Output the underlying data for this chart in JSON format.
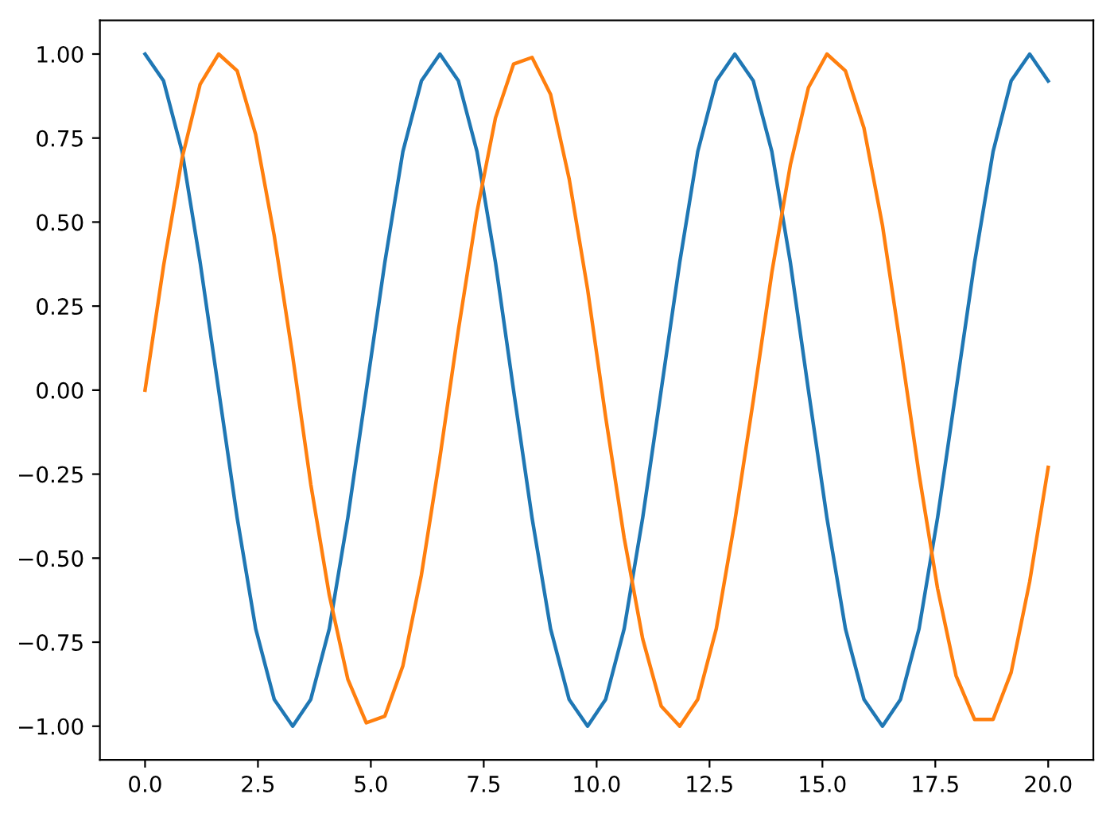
{
  "chart_data": {
    "type": "line",
    "x": [
      0,
      0.41,
      0.82,
      1.22,
      1.63,
      2.04,
      2.45,
      2.86,
      3.27,
      3.67,
      4.08,
      4.49,
      4.9,
      5.31,
      5.71,
      6.12,
      6.53,
      6.94,
      7.35,
      7.76,
      8.16,
      8.57,
      8.98,
      9.39,
      9.8,
      10.2,
      10.61,
      11.02,
      11.43,
      11.84,
      12.24,
      12.65,
      13.06,
      13.47,
      13.88,
      14.29,
      14.69,
      15.1,
      15.51,
      15.92,
      16.33,
      16.73,
      17.14,
      17.55,
      17.96,
      18.37,
      18.78,
      19.18,
      19.59,
      20
    ],
    "series": [
      {
        "color": "#1f77b4",
        "values": [
          1,
          0.92,
          0.71,
          0.38,
          0,
          -0.38,
          -0.71,
          -0.92,
          -1,
          -0.92,
          -0.71,
          -0.38,
          0,
          0.38,
          0.71,
          0.92,
          1,
          0.92,
          0.71,
          0.38,
          0,
          -0.38,
          -0.71,
          -0.92,
          -1,
          -0.92,
          -0.71,
          -0.38,
          0,
          0.38,
          0.71,
          0.92,
          1,
          0.92,
          0.71,
          0.38,
          0,
          -0.38,
          -0.71,
          -0.92,
          -1,
          -0.92,
          -0.71,
          -0.38,
          0,
          0.38,
          0.71,
          0.92,
          1,
          0.92
        ]
      },
      {
        "color": "#ff7f0e",
        "values": [
          0,
          0.37,
          0.69,
          0.91,
          1,
          0.95,
          0.76,
          0.46,
          0.1,
          -0.28,
          -0.61,
          -0.86,
          -0.99,
          -0.97,
          -0.82,
          -0.55,
          -0.2,
          0.18,
          0.53,
          0.81,
          0.97,
          0.99,
          0.88,
          0.63,
          0.3,
          -0.08,
          -0.44,
          -0.74,
          -0.94,
          -1,
          -0.92,
          -0.71,
          -0.39,
          -0.03,
          0.35,
          0.67,
          0.9,
          1,
          0.95,
          0.78,
          0.49,
          0.13,
          -0.25,
          -0.59,
          -0.85,
          -0.98,
          -0.98,
          -0.84,
          -0.57,
          -0.23
        ]
      }
    ],
    "xlim": [
      -1,
      21
    ],
    "ylim": [
      -1.1,
      1.1
    ],
    "xticks": [
      {
        "value": 0,
        "label": "0.0"
      },
      {
        "value": 2.5,
        "label": "2.5"
      },
      {
        "value": 5,
        "label": "5.0"
      },
      {
        "value": 7.5,
        "label": "7.5"
      },
      {
        "value": 10,
        "label": "10.0"
      },
      {
        "value": 12.5,
        "label": "12.5"
      },
      {
        "value": 15,
        "label": "15.0"
      },
      {
        "value": 17.5,
        "label": "17.5"
      },
      {
        "value": 20,
        "label": "20.0"
      }
    ],
    "yticks": [
      {
        "value": -1,
        "label": "−1.00"
      },
      {
        "value": -0.75,
        "label": "−0.75"
      },
      {
        "value": -0.5,
        "label": "−0.50"
      },
      {
        "value": -0.25,
        "label": "−0.25"
      },
      {
        "value": 0,
        "label": "0.00"
      },
      {
        "value": 0.25,
        "label": "0.25"
      },
      {
        "value": 0.5,
        "label": "0.50"
      },
      {
        "value": 0.75,
        "label": "0.75"
      },
      {
        "value": 1,
        "label": "1.00"
      }
    ],
    "grid": false,
    "legend": false
  }
}
